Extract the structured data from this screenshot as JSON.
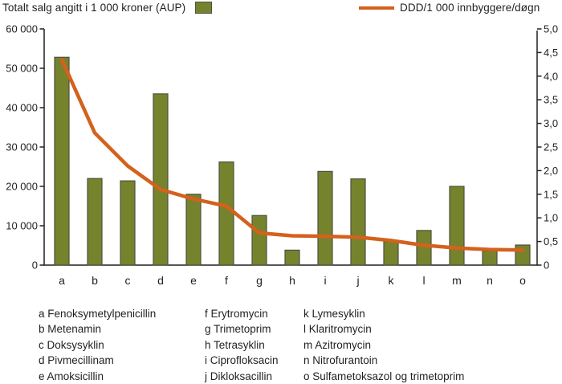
{
  "header": {
    "bar_legend_label": "Totalt salg angitt i 1 000 kroner (AUP)",
    "line_legend_label": "DDD/1 000 innbyggere/døgn"
  },
  "colors": {
    "bar_fill": "#76832d",
    "bar_stroke": "#4f5040",
    "line": "#d4611c",
    "axis": "#231f20",
    "text": "#231f20"
  },
  "chart_data": {
    "type": "bar",
    "subtype": "bar-with-line-overlay",
    "categories": [
      "a",
      "b",
      "c",
      "d",
      "e",
      "f",
      "g",
      "h",
      "i",
      "j",
      "k",
      "l",
      "m",
      "n",
      "o"
    ],
    "series": [
      {
        "name": "Totalt salg angitt i 1 000 kroner (AUP)",
        "type": "bar",
        "axis": "left",
        "values": [
          52800,
          22000,
          21400,
          43500,
          18000,
          26200,
          12600,
          3800,
          23800,
          21900,
          6000,
          8800,
          20000,
          3600,
          5100
        ]
      },
      {
        "name": "DDD/1 000 innbyggere/døgn",
        "type": "line",
        "axis": "right",
        "values": [
          4.35,
          2.8,
          2.1,
          1.6,
          1.4,
          1.25,
          0.68,
          0.62,
          0.61,
          0.59,
          0.52,
          0.42,
          0.36,
          0.33,
          0.32
        ]
      }
    ],
    "left_axis": {
      "min": 0,
      "max": 60000,
      "step": 10000,
      "tick_labels": [
        "0",
        "10 000",
        "20 000",
        "30 000",
        "40 000",
        "50 000",
        "60 000"
      ]
    },
    "right_axis": {
      "min": 0,
      "max": 5,
      "step": 0.5,
      "tick_labels": [
        "0",
        "0,5",
        "1,0",
        "1,5",
        "2,0",
        "2,5",
        "3,0",
        "3,5",
        "4,0",
        "4,5",
        "5,0"
      ]
    },
    "grid": false,
    "legend_position": "top"
  },
  "footnotes": {
    "columns": [
      [
        "a Fenoksymetylpenicillin",
        "b Metenamin",
        "c Doksysyklin",
        "d Pivmecillinam",
        "e Amoksicillin"
      ],
      [
        "f Erytromycin",
        "g Trimetoprim",
        "h Tetrasyklin",
        "i Ciprofloksacin",
        "j Dikloksacillin"
      ],
      [
        "k Lymesyklin",
        "l Klaritromycin",
        "m Azitromycin",
        "n Nitrofurantoin",
        "o Sulfametoksazol og trimetoprim"
      ]
    ]
  }
}
